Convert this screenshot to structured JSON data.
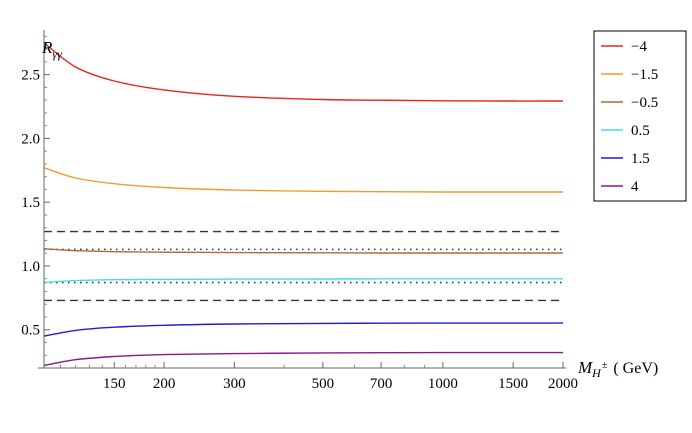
{
  "chart_data": {
    "type": "line",
    "title": "",
    "ylabel": {
      "main": "R",
      "sub": "γγ"
    },
    "xlabel": {
      "main": "M",
      "sub": "H",
      "sup": "±",
      "unit": "( GeV)"
    },
    "xscale": "log",
    "xlim": [
      100,
      2000
    ],
    "ylim": [
      0.2,
      2.85
    ],
    "x_tick_labels": [
      150,
      200,
      300,
      500,
      700,
      1000,
      1500,
      2000
    ],
    "y_tick_labels": [
      "0.5",
      "1.0",
      "1.5",
      "2.0",
      "2.5"
    ],
    "y_tick_values": [
      0.5,
      1.0,
      1.5,
      2.0,
      2.5
    ],
    "x_minor_ticks": [
      110,
      120,
      130,
      140,
      160,
      170,
      180,
      190,
      400,
      600,
      800,
      900
    ],
    "grid": false,
    "legend_position": "top-right",
    "series": [
      {
        "name": "−4",
        "color": "#e8241c",
        "x": [
          100,
          120,
          150,
          200,
          300,
          500,
          700,
          1000,
          1500,
          2000
        ],
        "y": [
          2.75,
          2.56,
          2.45,
          2.38,
          2.33,
          2.305,
          2.3,
          2.295,
          2.293,
          2.293
        ]
      },
      {
        "name": "−1.5",
        "color": "#f59a2c",
        "x": [
          100,
          120,
          150,
          200,
          300,
          500,
          700,
          1000,
          1500,
          2000
        ],
        "y": [
          1.77,
          1.69,
          1.645,
          1.615,
          1.595,
          1.585,
          1.582,
          1.58,
          1.58,
          1.58
        ]
      },
      {
        "name": "−0.5",
        "color": "#a86a3c",
        "x": [
          100,
          120,
          150,
          200,
          300,
          500,
          700,
          1000,
          1500,
          2000
        ],
        "y": [
          1.135,
          1.12,
          1.112,
          1.108,
          1.105,
          1.103,
          1.102,
          1.102,
          1.102,
          1.102
        ]
      },
      {
        "name": "0.5",
        "color": "#40e0e8",
        "x": [
          100,
          120,
          150,
          200,
          300,
          500,
          700,
          1000,
          1500,
          2000
        ],
        "y": [
          0.87,
          0.885,
          0.892,
          0.895,
          0.897,
          0.898,
          0.899,
          0.899,
          0.899,
          0.899
        ]
      },
      {
        "name": "1.5",
        "color": "#1f1fd0",
        "x": [
          100,
          120,
          150,
          200,
          300,
          500,
          700,
          1000,
          1500,
          2000
        ],
        "y": [
          0.45,
          0.495,
          0.52,
          0.535,
          0.545,
          0.55,
          0.551,
          0.552,
          0.552,
          0.552
        ]
      },
      {
        "name": "4",
        "color": "#8a1a8a",
        "x": [
          100,
          120,
          150,
          200,
          300,
          500,
          700,
          1000,
          1500,
          2000
        ],
        "y": [
          0.22,
          0.265,
          0.29,
          0.305,
          0.313,
          0.318,
          0.32,
          0.321,
          0.321,
          0.321
        ]
      }
    ],
    "reference_lines": [
      {
        "style": "dashed",
        "y": 1.27,
        "color": "#333333"
      },
      {
        "style": "dotted",
        "y": 1.13,
        "color": "#333333"
      },
      {
        "style": "dotted",
        "y": 0.87,
        "color": "#333333"
      },
      {
        "style": "dashed",
        "y": 0.73,
        "color": "#333333"
      }
    ]
  }
}
